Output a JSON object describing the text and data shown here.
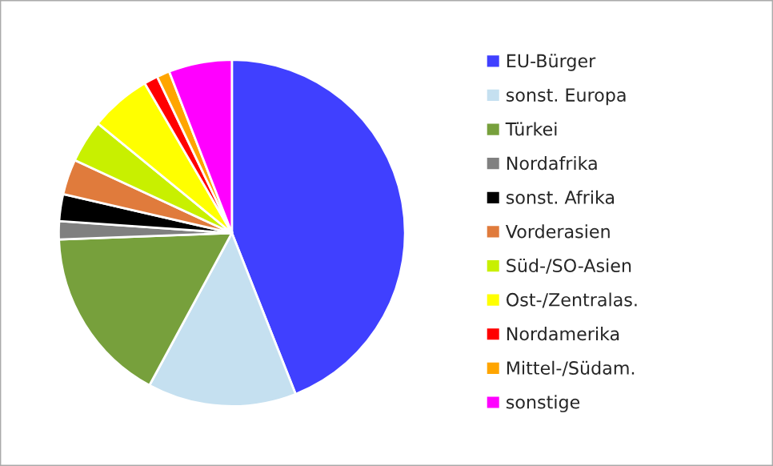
{
  "chart_data": {
    "type": "pie",
    "categories": [
      "EU-Bürger",
      "sonst. Europa",
      "Türkei",
      "Nordafrika",
      "sonst. Afrika",
      "Vorderasien",
      "Süd-/SO-Asien",
      "Ost-/Zentralas.",
      "Nordamerika",
      "Mittel-/Südam.",
      "sonstige"
    ],
    "values": [
      44,
      13.9,
      16.5,
      1.7,
      2.5,
      3.3,
      4,
      5.7,
      1.3,
      1.2,
      5.9
    ],
    "colors": [
      "#4040ff",
      "#c5e0f0",
      "#77a03c",
      "#808080",
      "#000000",
      "#e07b3c",
      "#c8f000",
      "#ffff00",
      "#ff0000",
      "#ffa500",
      "#ff00ff"
    ],
    "legend": "right"
  }
}
